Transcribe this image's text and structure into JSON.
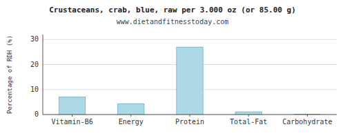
{
  "chart_data": {
    "type": "bar",
    "title": "Crustaceans, crab, blue, raw per 3.000 oz (or 85.00 g)",
    "subtitle": "www.dietandfitnesstoday.com",
    "categories": [
      "Vitamin-B6",
      "Energy",
      "Protein",
      "Total-Fat",
      "Carbohydrate"
    ],
    "values": [
      7,
      4.3,
      27,
      1.1,
      0.1
    ],
    "color": "#add8e6",
    "ylabel": "Percentage of RDH (%)",
    "ylim": [
      0,
      32
    ],
    "yticks": [
      0,
      10,
      20,
      30
    ],
    "grid": true
  }
}
